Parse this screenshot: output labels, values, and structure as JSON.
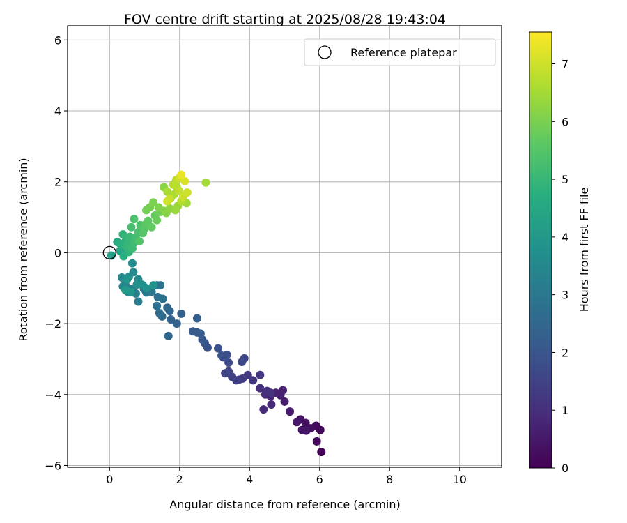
{
  "chart_data": {
    "type": "scatter",
    "title": "FOV centre drift starting at 2025/08/28 19:43:04",
    "xlabel": "Angular distance from reference (arcmin)",
    "ylabel": "Rotation from reference (arcmin)",
    "xlim": [
      -1.2,
      11.2
    ],
    "ylim": [
      -6.05,
      6.4
    ],
    "xticks": [
      0,
      2,
      4,
      6,
      8,
      10
    ],
    "xtick_labels": [
      "0",
      "2",
      "4",
      "6",
      "8",
      "10"
    ],
    "yticks": [
      -6,
      -4,
      -2,
      0,
      2,
      4,
      6
    ],
    "ytick_labels": [
      "−6",
      "−4",
      "−2",
      "0",
      "2",
      "4",
      "6"
    ],
    "grid": true,
    "legend": {
      "position": "top-right",
      "entries": [
        "Reference platepar"
      ]
    },
    "reference_point": {
      "x": 0,
      "y": 0
    },
    "colorbar": {
      "label": "Hours from first FF file",
      "range": [
        0,
        7.55
      ],
      "ticks": [
        0,
        1,
        2,
        3,
        4,
        5,
        6,
        7
      ],
      "tick_labels": [
        "0",
        "1",
        "2",
        "3",
        "4",
        "5",
        "6",
        "7"
      ],
      "colormap": "viridis"
    },
    "points": [
      [
        6.05,
        -5.62,
        0.05
      ],
      [
        5.92,
        -5.32,
        0.1
      ],
      [
        6.02,
        -5.0,
        0.15
      ],
      [
        5.9,
        -4.88,
        0.2
      ],
      [
        5.75,
        -4.95,
        0.25
      ],
      [
        5.6,
        -4.8,
        0.3
      ],
      [
        5.45,
        -4.7,
        0.35
      ],
      [
        5.5,
        -5.0,
        0.4
      ],
      [
        5.62,
        -5.02,
        0.45
      ],
      [
        5.35,
        -4.78,
        0.5
      ],
      [
        5.15,
        -4.48,
        0.55
      ],
      [
        5.0,
        -4.2,
        0.6
      ],
      [
        4.88,
        -4.02,
        0.65
      ],
      [
        4.95,
        -3.88,
        0.7
      ],
      [
        4.75,
        -3.95,
        0.75
      ],
      [
        4.6,
        -4.05,
        0.8
      ],
      [
        4.62,
        -4.28,
        0.85
      ],
      [
        4.4,
        -4.42,
        0.9
      ],
      [
        4.45,
        -4.0,
        0.95
      ],
      [
        4.3,
        -3.82,
        1.0
      ],
      [
        4.5,
        -3.9,
        1.05
      ],
      [
        4.6,
        -3.95,
        1.1
      ],
      [
        4.3,
        -3.45,
        1.15
      ],
      [
        4.1,
        -3.6,
        1.2
      ],
      [
        3.95,
        -3.45,
        1.25
      ],
      [
        3.8,
        -3.55,
        1.3
      ],
      [
        3.7,
        -3.58,
        1.35
      ],
      [
        3.62,
        -3.6,
        1.4
      ],
      [
        3.5,
        -3.5,
        1.45
      ],
      [
        3.4,
        -3.35,
        1.5
      ],
      [
        3.3,
        -3.4,
        1.55
      ],
      [
        3.85,
        -2.98,
        1.6
      ],
      [
        3.78,
        -3.08,
        1.65
      ],
      [
        3.4,
        -3.1,
        1.7
      ],
      [
        3.25,
        -2.95,
        1.75
      ],
      [
        3.35,
        -2.88,
        1.8
      ],
      [
        3.2,
        -2.9,
        1.85
      ],
      [
        3.1,
        -2.7,
        1.9
      ],
      [
        2.8,
        -2.68,
        1.95
      ],
      [
        2.72,
        -2.55,
        2.0
      ],
      [
        2.65,
        -2.45,
        2.05
      ],
      [
        2.5,
        -2.25,
        2.1
      ],
      [
        2.38,
        -2.22,
        2.15
      ],
      [
        2.6,
        -2.28,
        2.2
      ],
      [
        2.5,
        -1.85,
        2.25
      ],
      [
        2.05,
        -1.72,
        2.3
      ],
      [
        1.92,
        -2.0,
        2.35
      ],
      [
        1.75,
        -1.88,
        2.4
      ],
      [
        1.72,
        -1.65,
        2.45
      ],
      [
        1.65,
        -1.55,
        2.5
      ],
      [
        1.68,
        -2.35,
        2.55
      ],
      [
        1.5,
        -1.8,
        2.6
      ],
      [
        1.42,
        -1.7,
        2.65
      ],
      [
        1.35,
        -1.5,
        2.7
      ],
      [
        1.38,
        -1.25,
        2.75
      ],
      [
        1.52,
        -1.3,
        2.8
      ],
      [
        1.45,
        -0.92,
        2.85
      ],
      [
        1.35,
        -0.92,
        2.9
      ],
      [
        1.2,
        -1.1,
        2.95
      ],
      [
        1.05,
        -1.12,
        3.0
      ],
      [
        0.98,
        -1.02,
        3.05
      ],
      [
        0.95,
        -0.92,
        3.1
      ],
      [
        0.82,
        -1.38,
        3.15
      ],
      [
        0.75,
        -1.15,
        3.2
      ],
      [
        0.62,
        -1.02,
        3.25
      ],
      [
        0.52,
        -1.1,
        3.3
      ],
      [
        0.45,
        -0.9,
        3.35
      ],
      [
        0.38,
        -0.95,
        3.4
      ],
      [
        0.35,
        -0.7,
        3.45
      ],
      [
        0.55,
        -0.68,
        3.5
      ],
      [
        0.68,
        -0.55,
        3.55
      ],
      [
        0.82,
        -0.75,
        3.6
      ],
      [
        0.65,
        -0.3,
        3.65
      ],
      [
        0.78,
        -0.9,
        3.7
      ],
      [
        0.92,
        -0.9,
        3.75
      ],
      [
        1.05,
        -1.0,
        3.8
      ],
      [
        1.25,
        -0.92,
        3.85
      ],
      [
        0.6,
        -1.1,
        3.9
      ],
      [
        0.5,
        -0.75,
        3.95
      ],
      [
        0.45,
        -1.05,
        4.0
      ],
      [
        0.05,
        -0.08,
        4.25
      ],
      [
        0.3,
        0.05,
        4.35
      ],
      [
        0.22,
        0.3,
        4.45
      ],
      [
        0.35,
        0.2,
        4.55
      ],
      [
        0.45,
        0.08,
        4.6
      ],
      [
        0.4,
        -0.1,
        4.7
      ],
      [
        0.3,
        0.25,
        4.75
      ],
      [
        0.45,
        0.32,
        4.8
      ],
      [
        0.55,
        0.02,
        4.85
      ],
      [
        0.38,
        0.52,
        4.9
      ],
      [
        0.48,
        0.18,
        4.95
      ],
      [
        0.55,
        0.35,
        5.0
      ],
      [
        0.58,
        0.45,
        5.05
      ],
      [
        0.65,
        0.12,
        5.1
      ],
      [
        0.7,
        0.28,
        5.15
      ],
      [
        0.75,
        0.42,
        5.2
      ],
      [
        0.62,
        0.72,
        5.25
      ],
      [
        0.82,
        0.58,
        5.3
      ],
      [
        0.7,
        0.95,
        5.35
      ],
      [
        0.88,
        0.78,
        5.4
      ],
      [
        0.85,
        0.32,
        5.45
      ],
      [
        0.95,
        0.55,
        5.5
      ],
      [
        1.0,
        0.68,
        5.55
      ],
      [
        1.05,
        0.82,
        5.6
      ],
      [
        1.1,
        0.9,
        5.65
      ],
      [
        1.2,
        0.72,
        5.7
      ],
      [
        1.3,
        1.05,
        5.75
      ],
      [
        1.35,
        0.92,
        5.8
      ],
      [
        1.45,
        1.15,
        5.85
      ],
      [
        1.05,
        1.2,
        5.9
      ],
      [
        1.15,
        1.28,
        5.95
      ],
      [
        1.25,
        1.42,
        6.0
      ],
      [
        1.4,
        1.28,
        6.05
      ],
      [
        1.55,
        1.18,
        6.1
      ],
      [
        1.62,
        1.12,
        6.15
      ],
      [
        1.55,
        1.85,
        6.2
      ],
      [
        1.72,
        1.25,
        6.25
      ],
      [
        1.75,
        1.55,
        6.3
      ],
      [
        1.88,
        1.2,
        6.35
      ],
      [
        1.95,
        1.32,
        6.4
      ],
      [
        2.2,
        1.4,
        6.45
      ],
      [
        2.75,
        1.98,
        6.5
      ],
      [
        1.65,
        1.72,
        6.55
      ],
      [
        1.85,
        1.65,
        6.6
      ],
      [
        1.92,
        1.85,
        6.65
      ],
      [
        2.05,
        1.45,
        6.7
      ],
      [
        1.82,
        1.92,
        6.75
      ],
      [
        1.9,
        2.05,
        6.8
      ],
      [
        1.98,
        1.75,
        6.85
      ],
      [
        1.72,
        1.52,
        6.9
      ],
      [
        2.1,
        1.58,
        6.95
      ],
      [
        2.22,
        1.7,
        7.0
      ],
      [
        2.0,
        2.12,
        7.05
      ],
      [
        2.15,
        2.02,
        7.15
      ],
      [
        2.05,
        2.2,
        7.3
      ],
      [
        1.65,
        1.45,
        7.0
      ]
    ]
  }
}
